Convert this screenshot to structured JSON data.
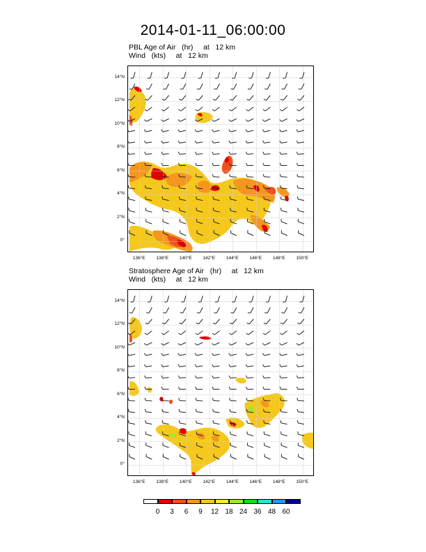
{
  "title": "2014-01-11_06:00:00",
  "panels": [
    {
      "title_line1": "PBL Age of Air   (hr)     at   12 km",
      "title_line2": "Wind   (kts)     at   12 km"
    },
    {
      "title_line1": "Stratosphere Age of Air   (hr)     at   12 km",
      "title_line2": "Wind   (kts)     at   12 km"
    }
  ],
  "map": {
    "lon_range": [
      135,
      151
    ],
    "lat_range": [
      -1,
      15
    ],
    "x_ticks": [
      "136°E",
      "138°E",
      "140°E",
      "142°E",
      "144°E",
      "146°E",
      "148°E",
      "150°E"
    ],
    "y_ticks": [
      "0°",
      "2°N",
      "4°N",
      "6°N",
      "8°N",
      "10°N",
      "12°N",
      "14°N"
    ],
    "gridlines": true
  },
  "legend": {
    "labels": [
      "0",
      "3",
      "6",
      "9",
      "12",
      "18",
      "24",
      "36",
      "48",
      "60"
    ],
    "colors": [
      "#ffffff",
      "#e10000",
      "#f0501e",
      "#f5961e",
      "#f5c81e",
      "#f0f01e",
      "#a0e632",
      "#14dc28",
      "#28e6d2",
      "#2896f0",
      "#000096"
    ]
  }
}
